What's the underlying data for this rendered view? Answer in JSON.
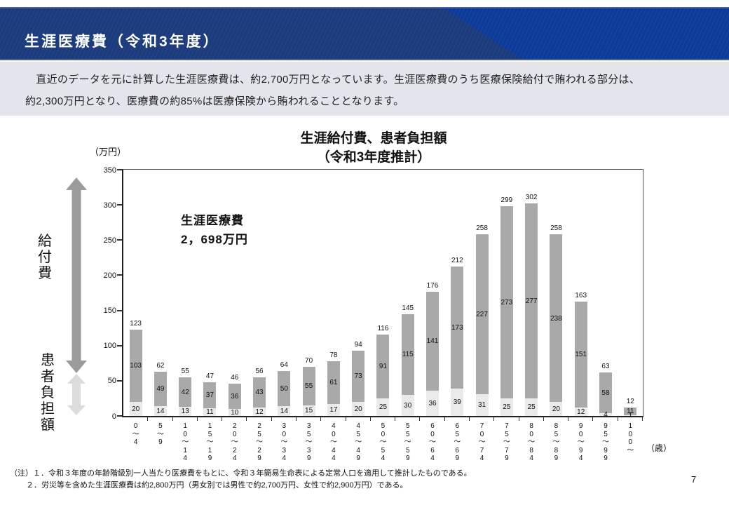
{
  "theme": {
    "header_bg": "#1c3b7c",
    "header_accent": "#0c3a99",
    "intro_bg": "#e4e4ed",
    "benefit_arrow_color": "#9b9b9b",
    "patient_arrow_color": "#dcdcdc",
    "axis_color": "#333333"
  },
  "header": {
    "title": "生涯医療費（令和3年度）"
  },
  "intro": {
    "line1": "　直近のデータを元に計算した生涯医療費は、約2,700万円となっています。生涯医療費のうち医療保険給付で賄われる部分は、",
    "line2": "約2,300万円となり、医療費の約85%は医療保険から賄われることとなります。"
  },
  "side": {
    "benefit_label": "給付費",
    "patient_label": "患者負担額"
  },
  "chart": {
    "title_line1": "生涯給付費、患者負担額",
    "title_line2": "（令和3年度推計）",
    "unit_label": "（万円）",
    "age_unit_label": "（歳）",
    "annotation_line1": "生涯医療費",
    "annotation_line2": "2，698万円"
  },
  "chart_data": {
    "type": "bar",
    "stacked": true,
    "title": "生涯給付費、患者負担額（令和3年度推計）",
    "ylabel": "（万円）",
    "xlabel": "（歳）",
    "ylim": [
      0,
      350
    ],
    "yticks": [
      0,
      50,
      100,
      150,
      200,
      250,
      300,
      350
    ],
    "grid": false,
    "categories": [
      "0〜4",
      "5〜9",
      "10〜14",
      "15〜19",
      "20〜24",
      "25〜29",
      "30〜34",
      "35〜39",
      "40〜44",
      "45〜49",
      "50〜54",
      "55〜59",
      "60〜64",
      "65〜69",
      "70〜74",
      "75〜79",
      "80〜84",
      "85〜89",
      "90〜94",
      "95〜99",
      "100〜"
    ],
    "series": [
      {
        "name": "患者負担額",
        "color": "#eaeaea",
        "values": [
          20,
          14,
          13,
          11,
          10,
          12,
          14,
          15,
          17,
          20,
          25,
          30,
          36,
          39,
          31,
          25,
          25,
          20,
          12,
          4,
          1
        ]
      },
      {
        "name": "給付費",
        "color": "#a9a9a9",
        "values": [
          103,
          49,
          42,
          37,
          36,
          43,
          50,
          55,
          61,
          73,
          91,
          115,
          141,
          173,
          227,
          273,
          277,
          238,
          151,
          58,
          11
        ]
      }
    ],
    "totals": [
      123,
      62,
      55,
      47,
      46,
      56,
      64,
      70,
      78,
      94,
      116,
      145,
      176,
      212,
      258,
      299,
      302,
      258,
      163,
      63,
      12
    ]
  },
  "notes": {
    "line1": "（注）１．令和３年度の年齢階級別一人当たり医療費をもとに、令和３年簡易生命表による定常人口を適用して推計したものである。",
    "line2": "２．労災等を含めた生涯医療費は約2,800万円（男女別では男性で約2,700万円、女性で約2,900万円）である。"
  },
  "page": {
    "number": "7"
  }
}
